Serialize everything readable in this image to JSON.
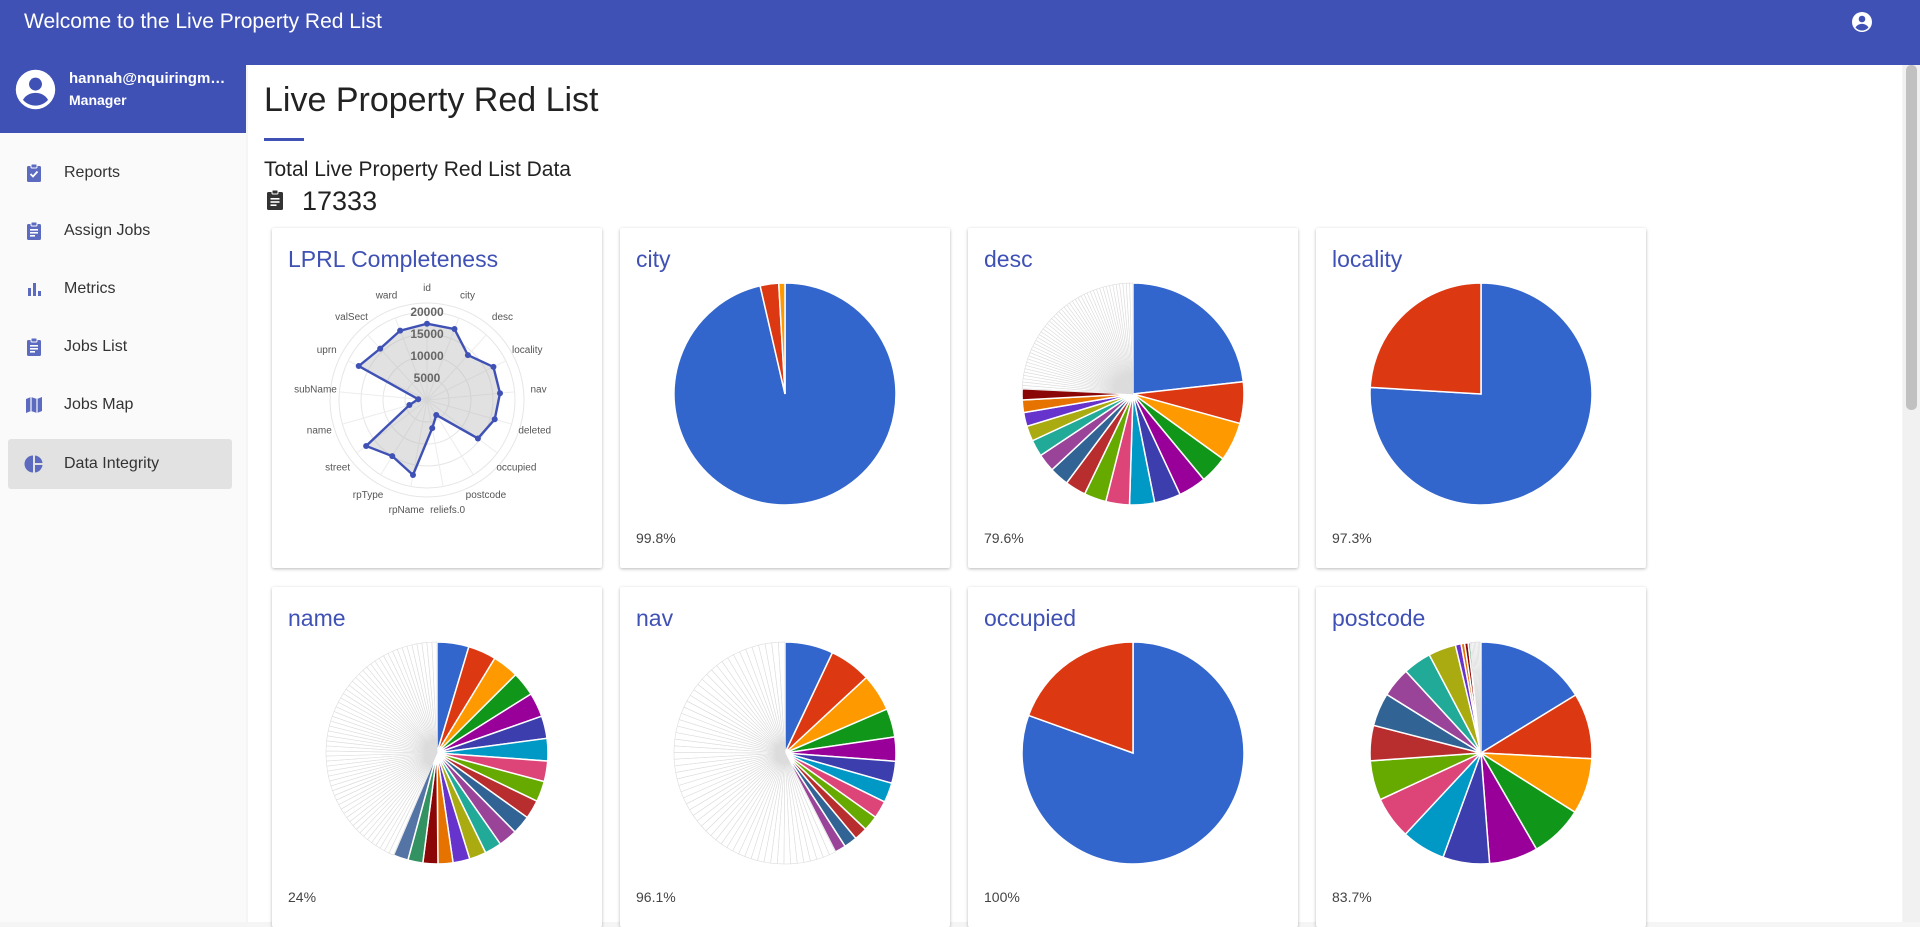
{
  "app": {
    "title": "Welcome to the Live Property Red List",
    "account_icon": "account-circle-icon"
  },
  "user": {
    "email": "hannah@nquiringmi…",
    "role": "Manager"
  },
  "sidebar": {
    "items": [
      {
        "label": "Reports",
        "icon": "assignment-turned-in-icon"
      },
      {
        "label": "Assign Jobs",
        "icon": "assignment-icon"
      },
      {
        "label": "Metrics",
        "icon": "bar-chart-icon"
      },
      {
        "label": "Jobs List",
        "icon": "assignment-icon"
      },
      {
        "label": "Jobs Map",
        "icon": "map-icon"
      },
      {
        "label": "Data Integrity",
        "icon": "pie-chart-icon",
        "active": true
      }
    ]
  },
  "page": {
    "title": "Live Property Red List",
    "total_label": "Total Live Property Red List Data",
    "total_value": "17333"
  },
  "colors": {
    "brand": "#3f51b5",
    "palette": [
      "#3366cc",
      "#dc3912",
      "#ff9900",
      "#109618",
      "#990099",
      "#3b3eac",
      "#0099c6",
      "#dd4477",
      "#66aa00",
      "#b82e2e",
      "#316395",
      "#994499",
      "#22aa99",
      "#aaaa11",
      "#6633cc",
      "#e67300",
      "#8b0707",
      "#329262",
      "#5574a6"
    ]
  },
  "chart_data": [
    {
      "type": "radar",
      "title": "LPRL Completeness",
      "axes": [
        "id",
        "city",
        "desc",
        "locality",
        "nav",
        "deleted",
        "occupied",
        "postcode",
        "reliefs.0",
        "rpName",
        "rpType",
        "street",
        "name",
        "subName",
        "uprn",
        "valSect",
        "ward"
      ],
      "values": [
        17333,
        17300,
        13800,
        16870,
        16660,
        16000,
        14500,
        4000,
        6500,
        17333,
        15000,
        17333,
        4160,
        2000,
        17333,
        15800,
        16900
      ],
      "ticks": [
        "5000",
        "10000",
        "15000",
        "20000"
      ],
      "rmax": 20000
    },
    {
      "type": "pie",
      "title": "city",
      "completeness": "99.8%",
      "slices": [
        {
          "value": 96.4,
          "color": "#3366cc"
        },
        {
          "value": 2.7,
          "color": "#dc3912"
        },
        {
          "value": 0.9,
          "color": "#ff9900"
        }
      ]
    },
    {
      "type": "pie",
      "title": "desc",
      "completeness": "79.6%",
      "slices": [
        {
          "value": 11.5,
          "color": "#3366cc"
        },
        {
          "value": 3.0,
          "color": "#dc3912"
        },
        {
          "value": 2.8,
          "color": "#ff9900"
        },
        {
          "value": 2.0,
          "color": "#109618"
        },
        {
          "value": 2.0,
          "color": "#990099"
        },
        {
          "value": 1.9,
          "color": "#3b3eac"
        },
        {
          "value": 1.8,
          "color": "#0099c6"
        },
        {
          "value": 1.7,
          "color": "#dd4477"
        },
        {
          "value": 1.6,
          "color": "#66aa00"
        },
        {
          "value": 1.5,
          "color": "#b82e2e"
        },
        {
          "value": 1.4,
          "color": "#316395"
        },
        {
          "value": 1.3,
          "color": "#994499"
        },
        {
          "value": 1.2,
          "color": "#22aa99"
        },
        {
          "value": 1.1,
          "color": "#aaaa11"
        },
        {
          "value": 1.0,
          "color": "#6633cc"
        },
        {
          "value": 0.9,
          "color": "#e67300"
        },
        {
          "value": 0.8,
          "color": "#8b0707"
        }
      ],
      "thin_slice_count": 50,
      "thin_total": 12
    },
    {
      "type": "pie",
      "title": "locality",
      "completeness": "97.3%",
      "slices": [
        {
          "value": 75.8,
          "color": "#3366cc"
        },
        {
          "value": 24.0,
          "color": "#dc3912"
        }
      ]
    },
    {
      "type": "pie",
      "title": "name",
      "completeness": "24%",
      "slices": [
        {
          "value": 1.7,
          "color": "#3366cc"
        },
        {
          "value": 1.5,
          "color": "#dc3912"
        },
        {
          "value": 1.4,
          "color": "#ff9900"
        },
        {
          "value": 1.3,
          "color": "#109618"
        },
        {
          "value": 1.3,
          "color": "#990099"
        },
        {
          "value": 1.2,
          "color": "#3b3eac"
        },
        {
          "value": 1.2,
          "color": "#0099c6"
        },
        {
          "value": 1.1,
          "color": "#dd4477"
        },
        {
          "value": 1.1,
          "color": "#66aa00"
        },
        {
          "value": 1.0,
          "color": "#b82e2e"
        },
        {
          "value": 1.0,
          "color": "#316395"
        },
        {
          "value": 1.0,
          "color": "#994499"
        },
        {
          "value": 0.9,
          "color": "#22aa99"
        },
        {
          "value": 0.9,
          "color": "#aaaa11"
        },
        {
          "value": 0.9,
          "color": "#6633cc"
        },
        {
          "value": 0.8,
          "color": "#e67300"
        },
        {
          "value": 0.8,
          "color": "#8b0707"
        },
        {
          "value": 0.8,
          "color": "#329262"
        },
        {
          "value": 0.8,
          "color": "#5574a6"
        }
      ],
      "thin_slice_count": 60,
      "thin_total": 16
    },
    {
      "type": "pie",
      "title": "nav",
      "completeness": "96.1%",
      "slices": [
        {
          "value": 2.2,
          "color": "#3366cc"
        },
        {
          "value": 1.9,
          "color": "#dc3912"
        },
        {
          "value": 1.7,
          "color": "#ff9900"
        },
        {
          "value": 1.3,
          "color": "#109618"
        },
        {
          "value": 1.1,
          "color": "#990099"
        },
        {
          "value": 1.0,
          "color": "#3b3eac"
        },
        {
          "value": 0.9,
          "color": "#0099c6"
        },
        {
          "value": 0.8,
          "color": "#dd4477"
        },
        {
          "value": 0.7,
          "color": "#66aa00"
        },
        {
          "value": 0.6,
          "color": "#b82e2e"
        },
        {
          "value": 0.6,
          "color": "#316395"
        },
        {
          "value": 0.5,
          "color": "#994499"
        }
      ],
      "thin_slice_count": 60,
      "thin_total": 18
    },
    {
      "type": "pie",
      "title": "occupied",
      "completeness": "100%",
      "slices": [
        {
          "value": 80.5,
          "color": "#3366cc"
        },
        {
          "value": 19.5,
          "color": "#dc3912"
        }
      ]
    },
    {
      "type": "pie",
      "title": "postcode",
      "completeness": "83.7%",
      "slices": [
        {
          "value": 15.8,
          "color": "#3366cc"
        },
        {
          "value": 9.3,
          "color": "#dc3912"
        },
        {
          "value": 7.9,
          "color": "#ff9900"
        },
        {
          "value": 7.5,
          "color": "#109618"
        },
        {
          "value": 6.9,
          "color": "#990099"
        },
        {
          "value": 6.6,
          "color": "#3b3eac"
        },
        {
          "value": 6.2,
          "color": "#0099c6"
        },
        {
          "value": 6.0,
          "color": "#dd4477"
        },
        {
          "value": 5.6,
          "color": "#66aa00"
        },
        {
          "value": 5.0,
          "color": "#b82e2e"
        },
        {
          "value": 4.7,
          "color": "#316395"
        },
        {
          "value": 4.2,
          "color": "#994499"
        },
        {
          "value": 4.0,
          "color": "#22aa99"
        },
        {
          "value": 3.9,
          "color": "#aaaa11"
        },
        {
          "value": 0.8,
          "color": "#6633cc"
        },
        {
          "value": 0.5,
          "color": "#e67300"
        },
        {
          "value": 0.5,
          "color": "#8b0707"
        },
        {
          "value": 0.3,
          "color": "#329262"
        }
      ],
      "thin_slice_count": 8,
      "thin_total": 1.5
    }
  ]
}
